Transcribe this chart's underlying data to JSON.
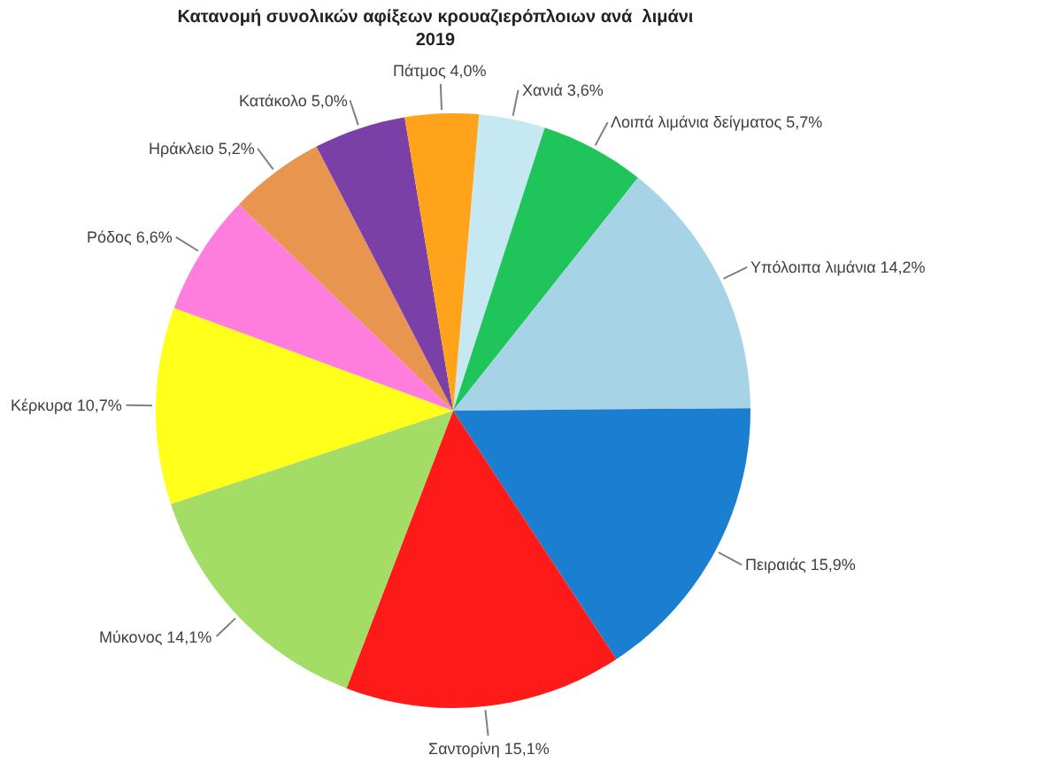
{
  "chart_data": {
    "type": "pie",
    "title": "Κατανομή συνολικών αφίξεων κρουαζιερόπλοιων ανά  λιμάνι\n2019",
    "categories": [
      "Χανιά",
      "Λοιπά λιμάνια δείγματος",
      "Υπόλοιπα λιμάνια",
      "Πειραιάς",
      "Σαντορίνη",
      "Μύκονος",
      "Κέρκυρα",
      "Ρόδος",
      "Ηράκλειο",
      "Κατάκολο",
      "Πάτμος"
    ],
    "values": [
      3.6,
      5.7,
      14.2,
      15.9,
      15.1,
      14.1,
      10.7,
      6.6,
      5.2,
      5.0,
      4.0
    ],
    "value_labels": [
      "3,6%",
      "5,7%",
      "14,2%",
      "15,9%",
      "15,1%",
      "14,1%",
      "10,7%",
      "6,6%",
      "5,2%",
      "5,0%",
      "4,0%"
    ],
    "colors": [
      "#c5e8f2",
      "#1fc45a",
      "#a6d3e6",
      "#1a7fd1",
      "#ff1a1a",
      "#a4dd66",
      "#ffff1a",
      "#ff7ddc",
      "#e8954f",
      "#7b3fa8",
      "#ffa31a"
    ]
  }
}
